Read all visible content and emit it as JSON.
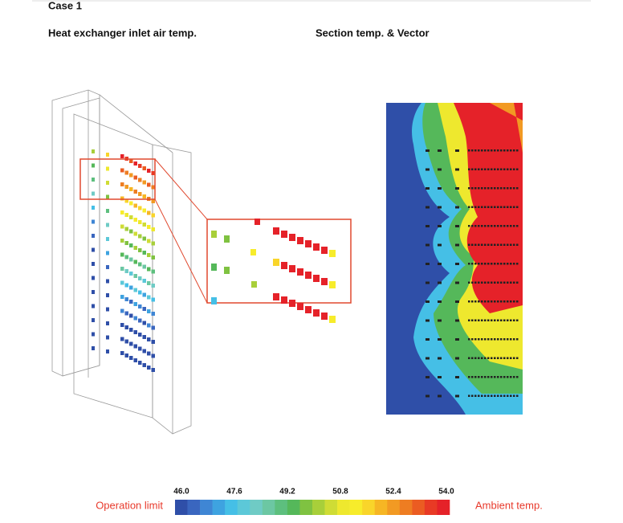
{
  "header": {
    "case": "Case 1",
    "left_title": "Heat exchanger inlet air temp.",
    "right_title": "Section temp. & Vector"
  },
  "colorbar": {
    "ticks": [
      {
        "value": 46,
        "label": "46.0"
      },
      {
        "value": 47.6,
        "label": "47.6"
      },
      {
        "value": 49.2,
        "label": "49.2"
      },
      {
        "value": 50.8,
        "label": "50.8"
      },
      {
        "value": 52.4,
        "label": "52.4"
      },
      {
        "value": 54,
        "label": "54.0"
      }
    ],
    "colors": [
      "#2f4fa8",
      "#3a66bf",
      "#3f86d4",
      "#3ea3e0",
      "#45bfe6",
      "#5cc8d8",
      "#6fcbc5",
      "#6cc7a3",
      "#5dbf7e",
      "#55b85a",
      "#7fc241",
      "#a8cf3a",
      "#cfdc35",
      "#eee82e",
      "#f7ec2b",
      "#f9d52a",
      "#f6b624",
      "#f29a23",
      "#ee7d22",
      "#eb5c22",
      "#e83a25",
      "#e52229"
    ],
    "low_label": "Operation limit",
    "high_label": "Ambient temp."
  }
}
